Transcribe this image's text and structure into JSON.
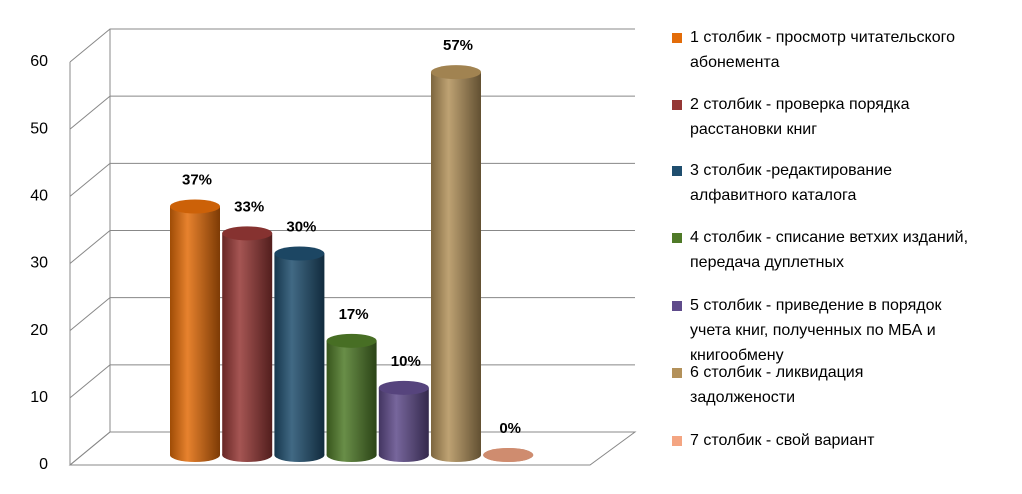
{
  "chart_data": {
    "type": "bar3d",
    "categories": [
      null
    ],
    "ylim": [
      0,
      60
    ],
    "yticks": [
      0,
      10,
      20,
      30,
      40,
      50,
      60
    ],
    "grid": true,
    "legend": "right",
    "series": [
      {
        "name": "1 столбик - просмотр читательского абонемента",
        "color": "#e36c09",
        "values": [
          37
        ],
        "value_labels": [
          "37%"
        ]
      },
      {
        "name": "2 столбик - проверка порядка расстановки книг",
        "color": "#953735",
        "values": [
          33
        ],
        "value_labels": [
          "33%"
        ]
      },
      {
        "name": "3 столбик -редактирование алфавитного каталога",
        "color": "#1f4e6e",
        "values": [
          30
        ],
        "value_labels": [
          "30%"
        ]
      },
      {
        "name": "4 столбик - списание ветхих изданий, передача дуплетных",
        "color": "#4f7a28",
        "values": [
          17
        ],
        "value_labels": [
          "17%"
        ]
      },
      {
        "name": "5 столбик - приведение в порядок учета книг, полученных по МБА и книгообмену",
        "color": "#5f4b8b",
        "values": [
          10
        ],
        "value_labels": [
          "10%"
        ]
      },
      {
        "name": "6 столбик - ликвидация задолжености",
        "color": "#b3915a",
        "values": [
          57
        ],
        "value_labels": [
          "57%"
        ]
      },
      {
        "name": "7 столбик - свой вариант",
        "color": "#f4a582",
        "values": [
          0
        ],
        "value_labels": [
          "0%"
        ]
      }
    ]
  }
}
